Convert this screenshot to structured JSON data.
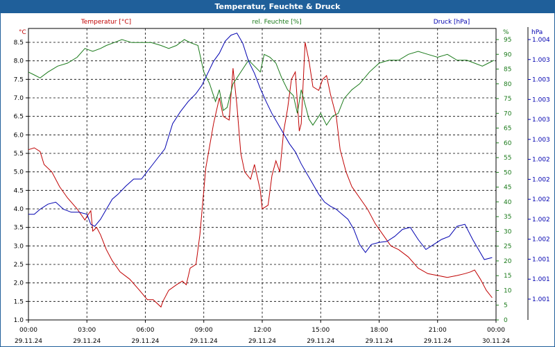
{
  "window": {
    "title": "Temperatur, Feuchte & Druck"
  },
  "colors": {
    "temp": "#c00000",
    "hum": "#1a7a1a",
    "press": "#0000b0",
    "title_bg": "#1f5f9a"
  },
  "chart_data": {
    "type": "line",
    "title": "Temperatur, Feuchte & Druck",
    "grid": true,
    "x_ticks": [
      {
        "time": "00:00",
        "date": "29.11.24"
      },
      {
        "time": "03:00",
        "date": "29.11.24"
      },
      {
        "time": "06:00",
        "date": "29.11.24"
      },
      {
        "time": "09:00",
        "date": "29.11.24"
      },
      {
        "time": "12:00",
        "date": "29.11.24"
      },
      {
        "time": "15:00",
        "date": "29.11.24"
      },
      {
        "time": "18:00",
        "date": "29.11.24"
      },
      {
        "time": "21:00",
        "date": "29.11.24"
      },
      {
        "time": "00:00",
        "date": "30.11.24"
      }
    ],
    "x_range_hours": [
      0,
      24
    ],
    "axes": {
      "temp": {
        "unit": "°C",
        "legend": "Temperatur [°C]",
        "range": [
          1.0,
          8.5
        ],
        "ticks": [
          "1.0",
          "1.5",
          "2.0",
          "2.5",
          "3.0",
          "3.5",
          "4.0",
          "4.5",
          "5.0",
          "5.5",
          "6.0",
          "6.5",
          "7.0",
          "7.5",
          "8.0",
          "8.5"
        ]
      },
      "hum": {
        "unit": "%",
        "legend": "rel. Feuchte [%]",
        "range": [
          0,
          95
        ],
        "ticks": [
          "0",
          "5",
          "10",
          "15",
          "20",
          "25",
          "30",
          "35",
          "40",
          "45",
          "50",
          "55",
          "60",
          "65",
          "70",
          "75",
          "80",
          "85",
          "90",
          "95"
        ]
      },
      "press": {
        "unit": "hPa",
        "legend": "Druck [hPa]",
        "ticks": [
          "1.001",
          "1.001",
          "1.001",
          "1.002",
          "1.002",
          "1.002",
          "1.002",
          "1.002",
          "1.003",
          "1.003",
          "1.003",
          "1.003",
          "1.003",
          "1.004"
        ]
      }
    },
    "series": [
      {
        "name": "Temperatur [°C]",
        "axis": "temp",
        "points": [
          [
            0,
            5.6
          ],
          [
            0.3,
            5.65
          ],
          [
            0.6,
            5.55
          ],
          [
            0.8,
            5.2
          ],
          [
            1.2,
            5.0
          ],
          [
            1.6,
            4.6
          ],
          [
            2.0,
            4.3
          ],
          [
            2.5,
            4.0
          ],
          [
            2.9,
            3.7
          ],
          [
            3.0,
            3.8
          ],
          [
            3.2,
            3.95
          ],
          [
            3.3,
            3.4
          ],
          [
            3.5,
            3.5
          ],
          [
            3.7,
            3.3
          ],
          [
            4.0,
            2.9
          ],
          [
            4.3,
            2.6
          ],
          [
            4.7,
            2.3
          ],
          [
            5.2,
            2.1
          ],
          [
            5.7,
            1.8
          ],
          [
            6.1,
            1.55
          ],
          [
            6.4,
            1.55
          ],
          [
            6.8,
            1.35
          ],
          [
            6.9,
            1.5
          ],
          [
            7.2,
            1.8
          ],
          [
            7.6,
            1.95
          ],
          [
            7.9,
            2.05
          ],
          [
            8.1,
            1.95
          ],
          [
            8.3,
            2.4
          ],
          [
            8.6,
            2.5
          ],
          [
            8.8,
            3.3
          ],
          [
            9.1,
            5.1
          ],
          [
            9.5,
            6.3
          ],
          [
            9.8,
            7.0
          ],
          [
            10.0,
            6.5
          ],
          [
            10.3,
            6.4
          ],
          [
            10.5,
            7.8
          ],
          [
            10.7,
            6.8
          ],
          [
            10.9,
            5.5
          ],
          [
            11.1,
            5.0
          ],
          [
            11.4,
            4.8
          ],
          [
            11.6,
            5.2
          ],
          [
            11.9,
            4.5
          ],
          [
            12.0,
            4.0
          ],
          [
            12.3,
            4.1
          ],
          [
            12.5,
            4.9
          ],
          [
            12.7,
            5.3
          ],
          [
            12.9,
            5.0
          ],
          [
            13.1,
            6.1
          ],
          [
            13.3,
            6.7
          ],
          [
            13.5,
            7.5
          ],
          [
            13.7,
            7.7
          ],
          [
            13.9,
            6.1
          ],
          [
            14.0,
            6.3
          ],
          [
            14.2,
            8.5
          ],
          [
            14.4,
            8.0
          ],
          [
            14.6,
            7.3
          ],
          [
            14.9,
            7.2
          ],
          [
            15.1,
            7.5
          ],
          [
            15.3,
            7.6
          ],
          [
            15.5,
            7.1
          ],
          [
            15.8,
            6.5
          ],
          [
            16.0,
            5.6
          ],
          [
            16.3,
            5.0
          ],
          [
            16.6,
            4.6
          ],
          [
            17.0,
            4.3
          ],
          [
            17.4,
            4.0
          ],
          [
            17.8,
            3.6
          ],
          [
            18.2,
            3.3
          ],
          [
            18.6,
            3.0
          ],
          [
            19.0,
            2.9
          ],
          [
            19.5,
            2.7
          ],
          [
            20.0,
            2.4
          ],
          [
            20.5,
            2.25
          ],
          [
            21.0,
            2.2
          ],
          [
            21.5,
            2.15
          ],
          [
            22.0,
            2.2
          ],
          [
            22.4,
            2.25
          ],
          [
            22.7,
            2.3
          ],
          [
            22.9,
            2.35
          ],
          [
            23.2,
            2.1
          ],
          [
            23.5,
            1.8
          ],
          [
            23.8,
            1.6
          ]
        ]
      },
      {
        "name": "rel. Feuchte [%]",
        "axis": "hum",
        "points": [
          [
            0,
            84
          ],
          [
            0.3,
            83
          ],
          [
            0.6,
            82
          ],
          [
            1.0,
            84
          ],
          [
            1.5,
            86
          ],
          [
            2.0,
            87
          ],
          [
            2.5,
            89
          ],
          [
            2.9,
            92
          ],
          [
            3.3,
            91
          ],
          [
            3.7,
            92
          ],
          [
            4.0,
            93
          ],
          [
            4.4,
            94
          ],
          [
            4.8,
            95
          ],
          [
            5.3,
            94
          ],
          [
            5.8,
            94
          ],
          [
            6.3,
            94
          ],
          [
            6.8,
            93
          ],
          [
            7.2,
            92
          ],
          [
            7.6,
            93
          ],
          [
            8.0,
            95
          ],
          [
            8.3,
            94
          ],
          [
            8.7,
            93
          ],
          [
            9.0,
            84
          ],
          [
            9.3,
            80
          ],
          [
            9.6,
            74
          ],
          [
            9.8,
            78
          ],
          [
            10.0,
            71
          ],
          [
            10.2,
            72
          ],
          [
            10.5,
            80
          ],
          [
            10.8,
            83
          ],
          [
            11.0,
            85
          ],
          [
            11.3,
            88
          ],
          [
            11.6,
            86
          ],
          [
            11.9,
            84
          ],
          [
            12.1,
            90
          ],
          [
            12.4,
            89
          ],
          [
            12.7,
            87
          ],
          [
            13.0,
            82
          ],
          [
            13.3,
            78
          ],
          [
            13.6,
            76
          ],
          [
            13.8,
            70
          ],
          [
            14.0,
            78
          ],
          [
            14.2,
            73
          ],
          [
            14.4,
            68
          ],
          [
            14.6,
            66
          ],
          [
            14.8,
            68
          ],
          [
            15.0,
            70
          ],
          [
            15.3,
            66
          ],
          [
            15.6,
            69
          ],
          [
            15.9,
            70
          ],
          [
            16.2,
            75
          ],
          [
            16.6,
            78
          ],
          [
            17.0,
            80
          ],
          [
            17.5,
            84
          ],
          [
            18.0,
            87
          ],
          [
            18.5,
            88
          ],
          [
            19.0,
            88
          ],
          [
            19.5,
            90
          ],
          [
            20.0,
            91
          ],
          [
            20.5,
            90
          ],
          [
            21.0,
            89
          ],
          [
            21.5,
            90
          ],
          [
            22.0,
            88
          ],
          [
            22.5,
            88
          ],
          [
            22.9,
            87
          ],
          [
            23.3,
            86
          ],
          [
            23.6,
            87
          ],
          [
            23.9,
            88
          ]
        ]
      },
      {
        "name": "Druck [hPa]",
        "axis": "press",
        "points": [
          [
            0,
            1001.6
          ],
          [
            0.3,
            1001.6
          ],
          [
            0.6,
            1001.65
          ],
          [
            1.0,
            1001.7
          ],
          [
            1.4,
            1001.72
          ],
          [
            1.8,
            1001.65
          ],
          [
            2.2,
            1001.62
          ],
          [
            2.6,
            1001.62
          ],
          [
            3.0,
            1001.6
          ],
          [
            3.2,
            1001.5
          ],
          [
            3.4,
            1001.48
          ],
          [
            3.7,
            1001.55
          ],
          [
            4.0,
            1001.65
          ],
          [
            4.3,
            1001.75
          ],
          [
            4.6,
            1001.8
          ],
          [
            5.0,
            1001.88
          ],
          [
            5.4,
            1001.95
          ],
          [
            5.8,
            1001.95
          ],
          [
            6.2,
            1002.05
          ],
          [
            6.6,
            1002.15
          ],
          [
            7.0,
            1002.25
          ],
          [
            7.4,
            1002.5
          ],
          [
            7.8,
            1002.62
          ],
          [
            8.2,
            1002.72
          ],
          [
            8.6,
            1002.8
          ],
          [
            8.9,
            1002.88
          ],
          [
            9.2,
            1003.0
          ],
          [
            9.5,
            1003.12
          ],
          [
            9.8,
            1003.2
          ],
          [
            10.1,
            1003.32
          ],
          [
            10.4,
            1003.38
          ],
          [
            10.7,
            1003.4
          ],
          [
            11.0,
            1003.3
          ],
          [
            11.3,
            1003.12
          ],
          [
            11.6,
            1003.0
          ],
          [
            11.9,
            1002.85
          ],
          [
            12.2,
            1002.72
          ],
          [
            12.5,
            1002.6
          ],
          [
            12.8,
            1002.5
          ],
          [
            13.1,
            1002.4
          ],
          [
            13.4,
            1002.3
          ],
          [
            13.7,
            1002.22
          ],
          [
            14.0,
            1002.1
          ],
          [
            14.3,
            1002.0
          ],
          [
            14.6,
            1001.9
          ],
          [
            14.9,
            1001.8
          ],
          [
            15.2,
            1001.72
          ],
          [
            15.5,
            1001.68
          ],
          [
            15.8,
            1001.65
          ],
          [
            16.1,
            1001.6
          ],
          [
            16.4,
            1001.55
          ],
          [
            16.7,
            1001.45
          ],
          [
            17.0,
            1001.3
          ],
          [
            17.3,
            1001.22
          ],
          [
            17.6,
            1001.3
          ],
          [
            18.0,
            1001.32
          ],
          [
            18.4,
            1001.33
          ],
          [
            18.8,
            1001.38
          ],
          [
            19.2,
            1001.45
          ],
          [
            19.6,
            1001.47
          ],
          [
            20.0,
            1001.35
          ],
          [
            20.4,
            1001.25
          ],
          [
            20.8,
            1001.3
          ],
          [
            21.2,
            1001.35
          ],
          [
            21.6,
            1001.38
          ],
          [
            22.0,
            1001.48
          ],
          [
            22.4,
            1001.5
          ],
          [
            22.8,
            1001.35
          ],
          [
            23.1,
            1001.25
          ],
          [
            23.4,
            1001.15
          ],
          [
            23.8,
            1001.17
          ]
        ]
      }
    ]
  }
}
